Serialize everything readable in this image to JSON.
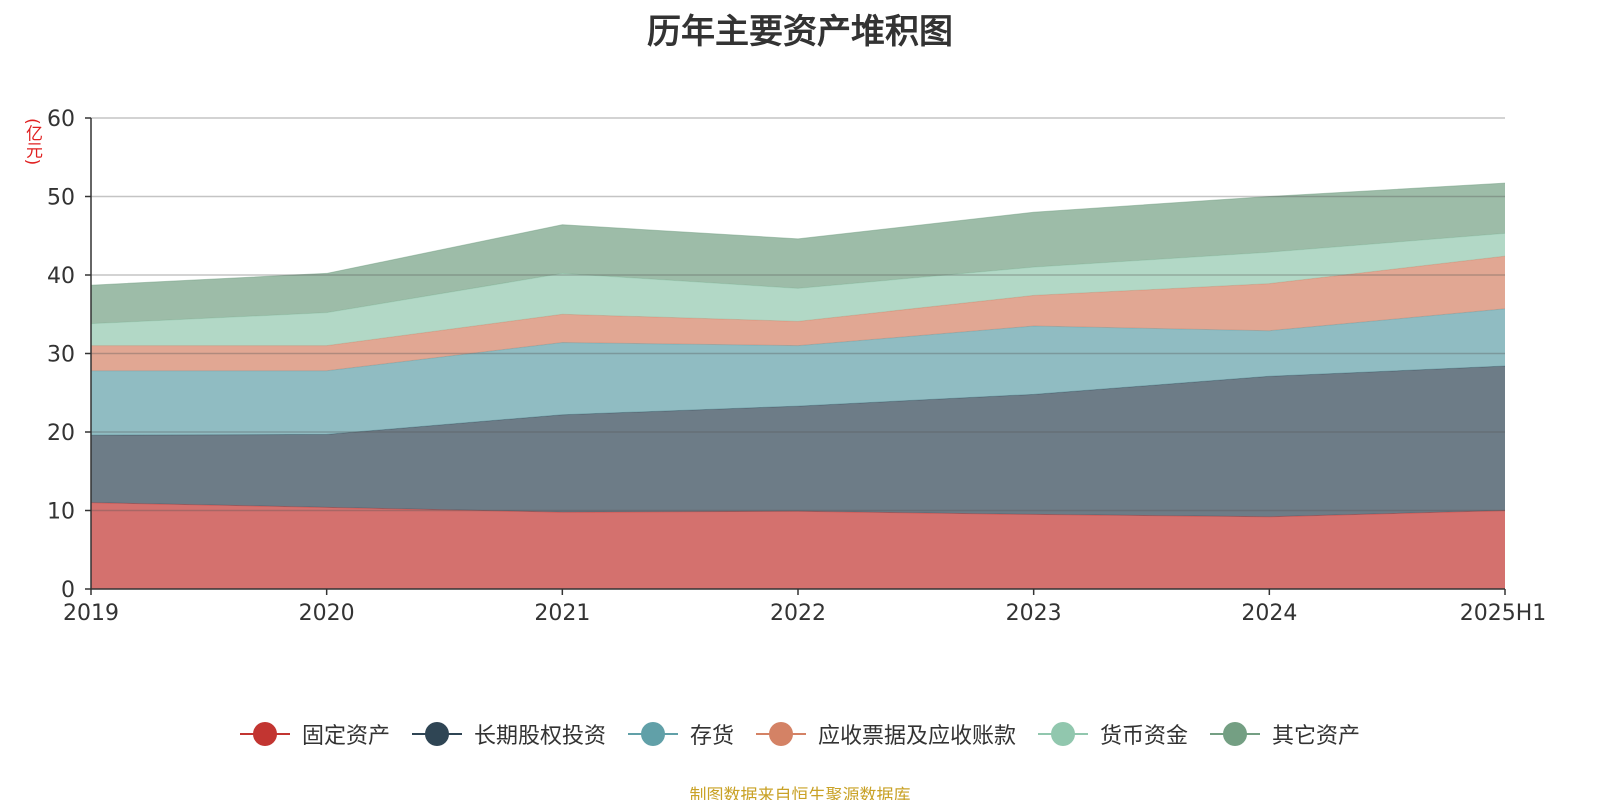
{
  "chart_data": {
    "type": "area",
    "stacked": true,
    "title": "历年主要资产堆积图",
    "ylabel": "(亿元)",
    "ylim": [
      0,
      60
    ],
    "yticks": [
      0,
      10,
      20,
      30,
      40,
      50,
      60
    ],
    "grid": true,
    "legend_position": "bottom",
    "categories": [
      "2019",
      "2020",
      "2021",
      "2022",
      "2023",
      "2024",
      "2025H1"
    ],
    "series": [
      {
        "name": "固定资产",
        "color": "#c23531",
        "values": [
          11.0,
          10.4,
          9.8,
          9.9,
          9.5,
          9.2,
          10.0
        ]
      },
      {
        "name": "长期股权投资",
        "color": "#2f4554",
        "values": [
          8.6,
          9.3,
          12.4,
          13.4,
          15.3,
          17.9,
          18.4
        ]
      },
      {
        "name": "存货",
        "color": "#61a0a8",
        "values": [
          8.2,
          8.1,
          9.2,
          7.7,
          8.7,
          5.8,
          7.3
        ]
      },
      {
        "name": "应收票据及应收账款",
        "color": "#d48265",
        "values": [
          3.2,
          3.2,
          3.6,
          3.1,
          3.9,
          6.0,
          6.7
        ]
      },
      {
        "name": "货币资金",
        "color": "#91c7ae",
        "values": [
          2.8,
          4.2,
          5.2,
          4.2,
          3.6,
          4.0,
          2.9
        ]
      },
      {
        "name": "其它资产",
        "color": "#749f83",
        "values": [
          4.9,
          5.0,
          6.2,
          6.3,
          7.0,
          7.1,
          6.4
        ]
      }
    ]
  },
  "footer": {
    "source": "制图数据来自恒生聚源数据库"
  }
}
